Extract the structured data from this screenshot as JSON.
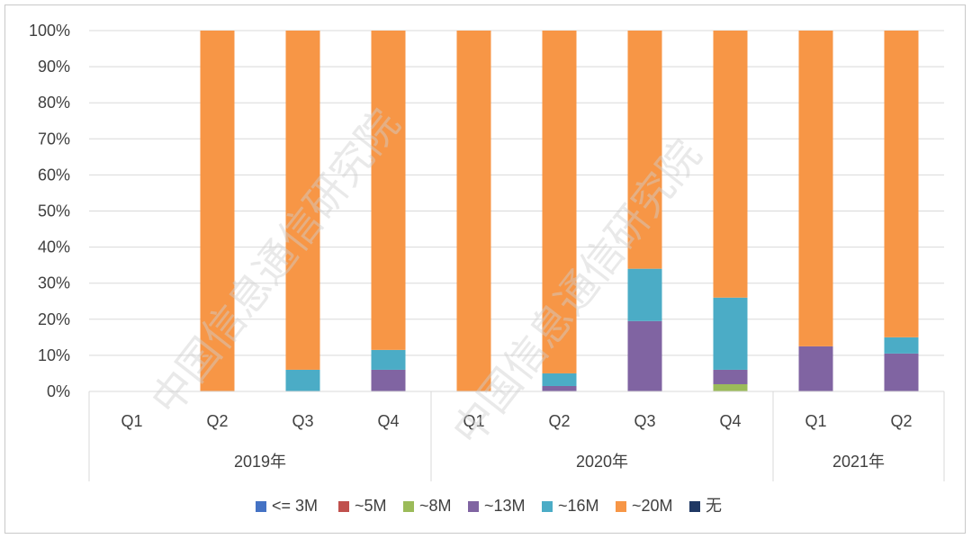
{
  "chart_data": {
    "type": "bar",
    "stacked": true,
    "percent": true,
    "groups": [
      {
        "label": "2019年",
        "categories": [
          "Q1",
          "Q2",
          "Q3",
          "Q4"
        ]
      },
      {
        "label": "2020年",
        "categories": [
          "Q1",
          "Q2",
          "Q3",
          "Q4"
        ]
      },
      {
        "label": "2021年",
        "categories": [
          "Q1",
          "Q2"
        ]
      }
    ],
    "categories": [
      "Q1",
      "Q2",
      "Q3",
      "Q4",
      "Q1",
      "Q2",
      "Q3",
      "Q4",
      "Q1",
      "Q2"
    ],
    "series": [
      {
        "name": "<= 3M",
        "color": "#4472c4",
        "values": [
          0,
          0,
          0,
          0,
          0,
          0,
          0,
          0,
          0,
          0
        ]
      },
      {
        "name": "~5M",
        "color": "#c0504d",
        "values": [
          0,
          0,
          0,
          0,
          0,
          0,
          0,
          0,
          0,
          0
        ]
      },
      {
        "name": "~8M",
        "color": "#9bbb59",
        "values": [
          0,
          0,
          0,
          0,
          0,
          0,
          0,
          2,
          0,
          0
        ]
      },
      {
        "name": "~13M",
        "color": "#8064a2",
        "values": [
          0,
          0,
          0,
          6,
          0,
          1.5,
          19.5,
          4,
          12.5,
          10.5
        ]
      },
      {
        "name": "~16M",
        "color": "#4bacc6",
        "values": [
          0,
          0,
          6,
          5.5,
          0,
          3.5,
          14.5,
          20,
          0,
          4.5
        ]
      },
      {
        "name": "~20M",
        "color": "#f79646",
        "values": [
          0,
          100,
          94,
          88.5,
          100,
          95,
          66,
          74,
          87.5,
          85
        ]
      },
      {
        "name": "无",
        "color": "#1f3864",
        "values": [
          0,
          0,
          0,
          0,
          0,
          0,
          0,
          0,
          0,
          0
        ]
      }
    ],
    "y_ticks": [
      "0%",
      "10%",
      "20%",
      "30%",
      "40%",
      "50%",
      "60%",
      "70%",
      "80%",
      "90%",
      "100%"
    ],
    "ylim": [
      0,
      100
    ],
    "grid": true,
    "legend_position": "bottom",
    "title": "",
    "xlabel": "",
    "ylabel": ""
  },
  "watermarks": [
    "中国信息通信研究院",
    "中国信息通信研究院"
  ]
}
